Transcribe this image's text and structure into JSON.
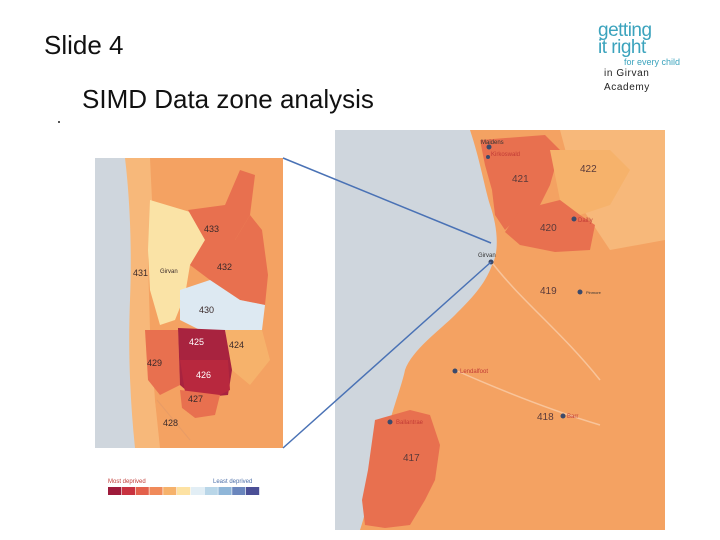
{
  "slide": {
    "number": "Slide 4",
    "title": "SIMD Data zone analysis"
  },
  "logo": {
    "line1": "getting",
    "line2": "it right",
    "line3": "for every child"
  },
  "caption": {
    "line1": "in Girvan",
    "line2": "Academy"
  },
  "left_map": {
    "town": "Girvan",
    "zones": [
      {
        "id": "433",
        "label": "433"
      },
      {
        "id": "432",
        "label": "432"
      },
      {
        "id": "431",
        "label": "431"
      },
      {
        "id": "430",
        "label": "430"
      },
      {
        "id": "425",
        "label": "425"
      },
      {
        "id": "424",
        "label": "424"
      },
      {
        "id": "429",
        "label": "429"
      },
      {
        "id": "426",
        "label": "426"
      },
      {
        "id": "427",
        "label": "427"
      },
      {
        "id": "428",
        "label": "428"
      }
    ],
    "legend": {
      "most": "Most deprived",
      "least": "Least deprived",
      "swatches": [
        "#9e1b3b",
        "#c8323f",
        "#e3604b",
        "#f08a5a",
        "#f6b26b",
        "#fde2a3",
        "#e2eef5",
        "#b9d6e8",
        "#8fb6d8",
        "#6a86bd",
        "#4b4f96"
      ]
    }
  },
  "right_map": {
    "places": [
      "Maidens",
      "Kirkoswald",
      "Dailly",
      "Girvan",
      "Pinmore",
      "Lendalfoot",
      "Barr",
      "Ballantrae"
    ],
    "zones": [
      {
        "id": "421",
        "label": "421"
      },
      {
        "id": "422",
        "label": "422"
      },
      {
        "id": "420",
        "label": "420"
      },
      {
        "id": "419",
        "label": "419"
      },
      {
        "id": "418",
        "label": "418"
      },
      {
        "id": "417",
        "label": "417"
      }
    ]
  },
  "colors": {
    "zoom_line": "#4a72b5",
    "sea": "#cfd6dd",
    "orange": "#f4a262",
    "light_orange": "#f7b87a",
    "red_orange": "#e8704f",
    "dark_red": "#a8233f",
    "pale_yellow": "#fae3a6",
    "pale_blue": "#dde9f2"
  }
}
